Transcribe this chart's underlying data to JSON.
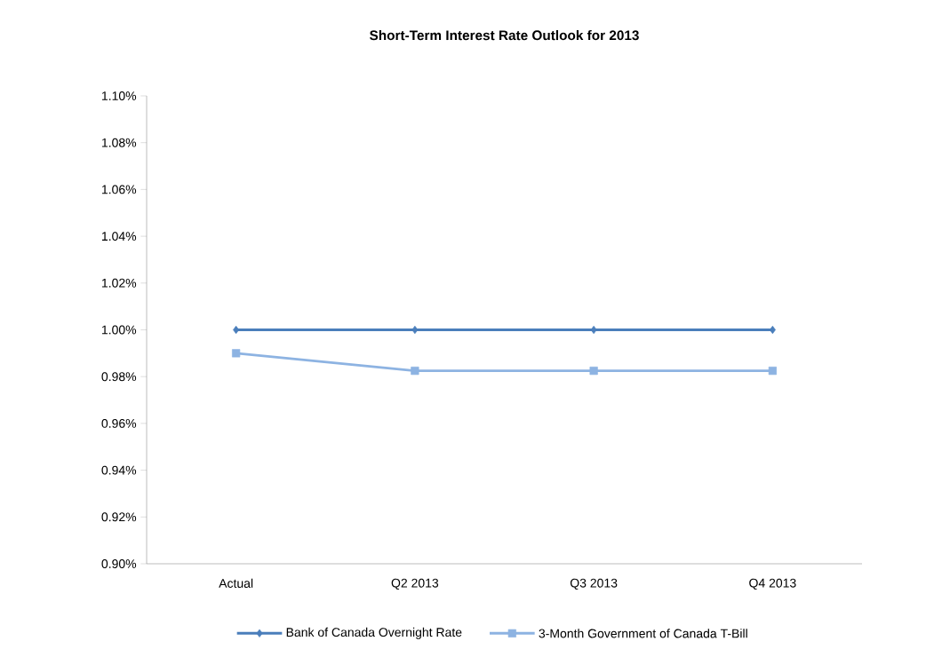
{
  "chart_data": {
    "type": "line",
    "title": "Short-Term Interest Rate Outlook for 2013",
    "categories": [
      "Actual",
      "Q2 2013",
      "Q3 2013",
      "Q4 2013"
    ],
    "series": [
      {
        "name": "Bank of Canada Overnight Rate",
        "color": "#4a7ebb",
        "marker": "diamond",
        "values": [
          1.0,
          1.0,
          1.0,
          1.0
        ]
      },
      {
        "name": "3-Month Government of Canada T-Bill",
        "color": "#8db3e2",
        "marker": "square",
        "values": [
          0.99,
          0.9825,
          0.9825,
          0.9825
        ]
      }
    ],
    "ylim": [
      0.9,
      1.1
    ],
    "yticks": [
      {
        "value": 0.9,
        "label": "0.90%"
      },
      {
        "value": 0.92,
        "label": "0.92%"
      },
      {
        "value": 0.94,
        "label": "0.94%"
      },
      {
        "value": 0.96,
        "label": "0.96%"
      },
      {
        "value": 0.98,
        "label": "0.98%"
      },
      {
        "value": 1.0,
        "label": "1.00%"
      },
      {
        "value": 1.02,
        "label": "1.02%"
      },
      {
        "value": 1.04,
        "label": "1.04%"
      },
      {
        "value": 1.06,
        "label": "1.06%"
      },
      {
        "value": 1.08,
        "label": "1.08%"
      },
      {
        "value": 1.1,
        "label": "1.10%"
      }
    ],
    "grid": false,
    "legend": "bottom",
    "line_style": "solid"
  }
}
